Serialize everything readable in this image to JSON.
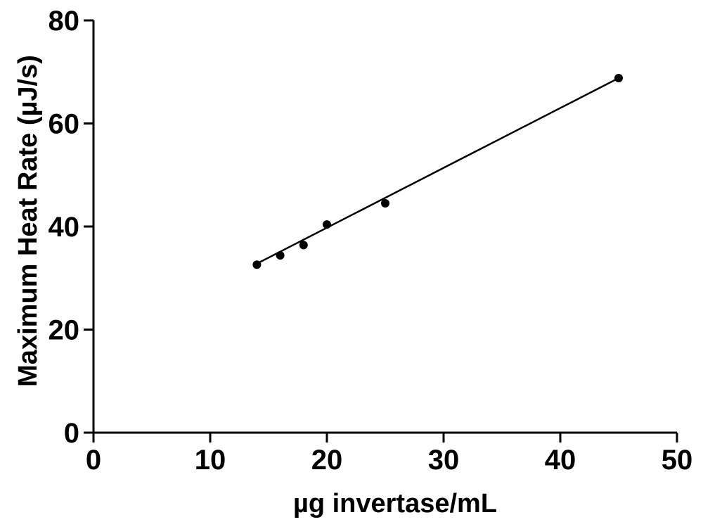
{
  "chart_data": {
    "type": "scatter",
    "title": "",
    "xlabel": "µg invertase/mL",
    "ylabel": "Maximum Heat Rate (µJ/s)",
    "xlim": [
      0,
      50
    ],
    "ylim": [
      0,
      80
    ],
    "xticks": [
      0,
      10,
      20,
      30,
      40,
      50
    ],
    "yticks": [
      0,
      20,
      40,
      60,
      80
    ],
    "xtick_labels": [
      "0",
      "10",
      "20",
      "30",
      "40",
      "50"
    ],
    "ytick_labels": [
      "0",
      "20",
      "40",
      "60",
      "80"
    ],
    "grid": false,
    "legend": "none",
    "series": [
      {
        "name": "Maximum Heat Rate",
        "x": [
          14,
          16,
          18,
          20,
          25,
          45
        ],
        "y": [
          32.6,
          34.4,
          36.4,
          40.4,
          44.5,
          68.8
        ]
      }
    ],
    "fit_line": {
      "x": [
        14,
        45
      ],
      "y": [
        32.8,
        68.8
      ]
    },
    "colors": {
      "points": "#000000",
      "line": "#000000",
      "axes": "#000000"
    }
  }
}
